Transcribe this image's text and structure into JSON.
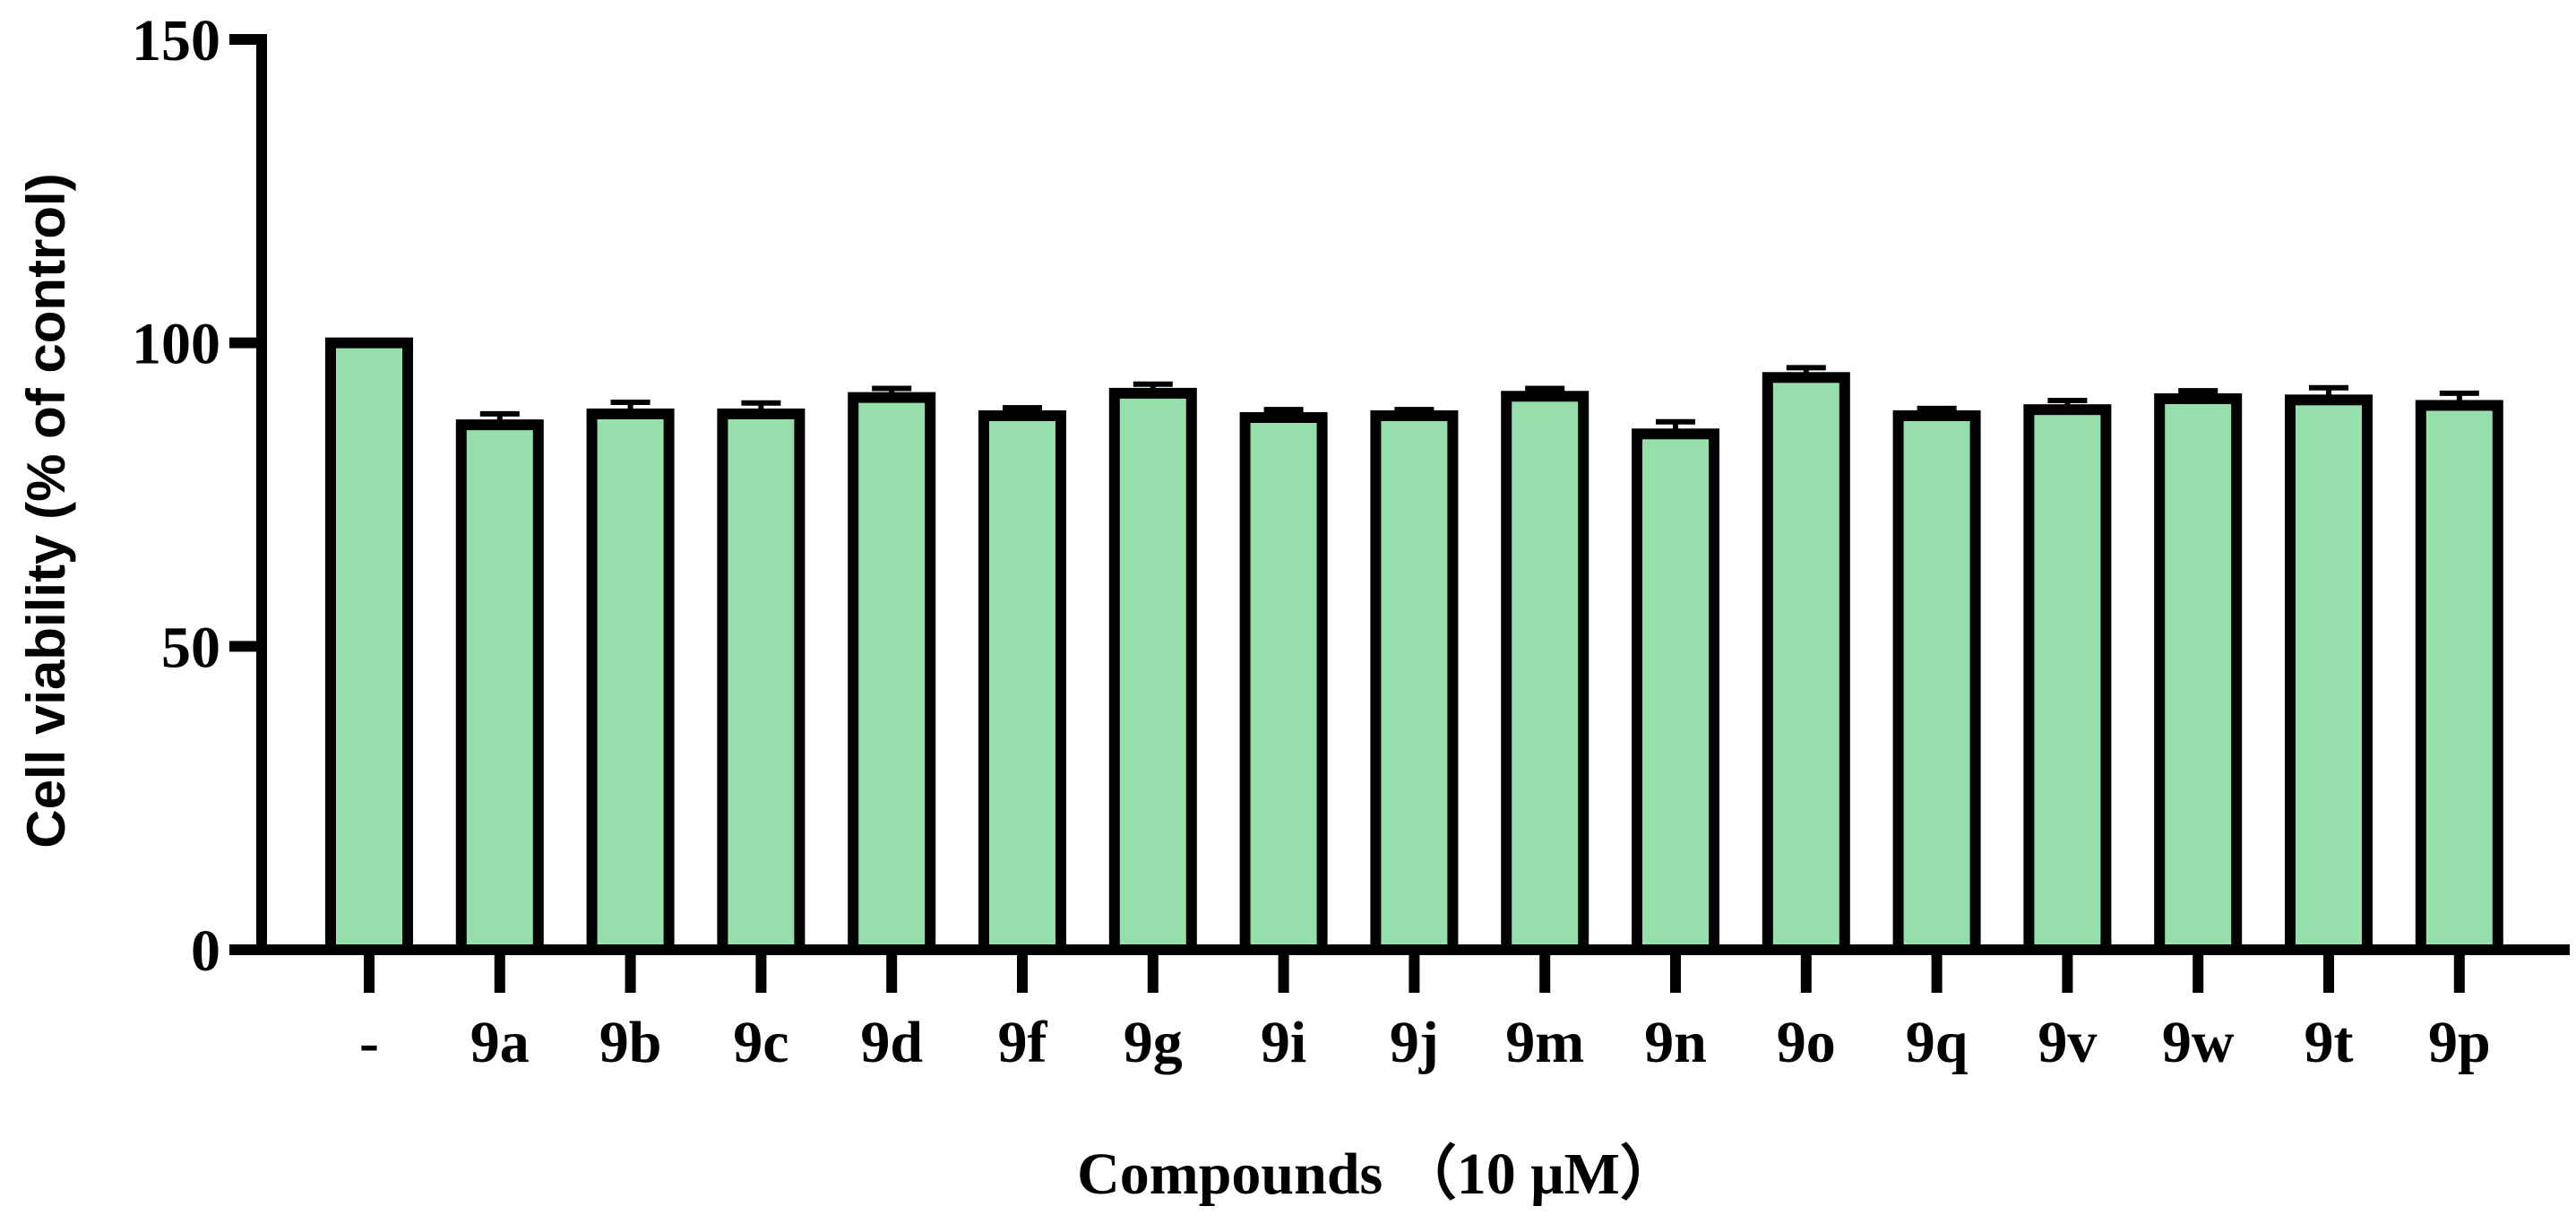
{
  "chart_data": {
    "type": "bar",
    "title": "",
    "xlabel": "Compounds （10 μM）",
    "ylabel": "Cell viability (% of control)",
    "ylim": [
      0,
      150
    ],
    "yticks": [
      0,
      50,
      100,
      150
    ],
    "categories": [
      "-",
      "9a",
      "9b",
      "9c",
      "9d",
      "9f",
      "9g",
      "9i",
      "9j",
      "9m",
      "9n",
      "9o",
      "9q",
      "9v",
      "9w",
      "9t",
      "9p"
    ],
    "values": [
      100,
      86.5,
      88.3,
      88.3,
      91.0,
      88.0,
      91.7,
      87.7,
      88.0,
      91.2,
      85.0,
      94.3,
      88.0,
      89.0,
      90.8,
      90.6,
      89.7
    ],
    "errors": [
      0,
      1.8,
      1.9,
      1.8,
      1.5,
      1.3,
      1.5,
      1.3,
      1.0,
      1.3,
      2.0,
      1.6,
      1.2,
      1.5,
      1.3,
      2.0,
      2.0
    ],
    "grid": false,
    "legend": "none",
    "colors": {
      "bar_fill": "#96dfad",
      "bar_stroke": "#000000",
      "axis": "#000000"
    }
  }
}
